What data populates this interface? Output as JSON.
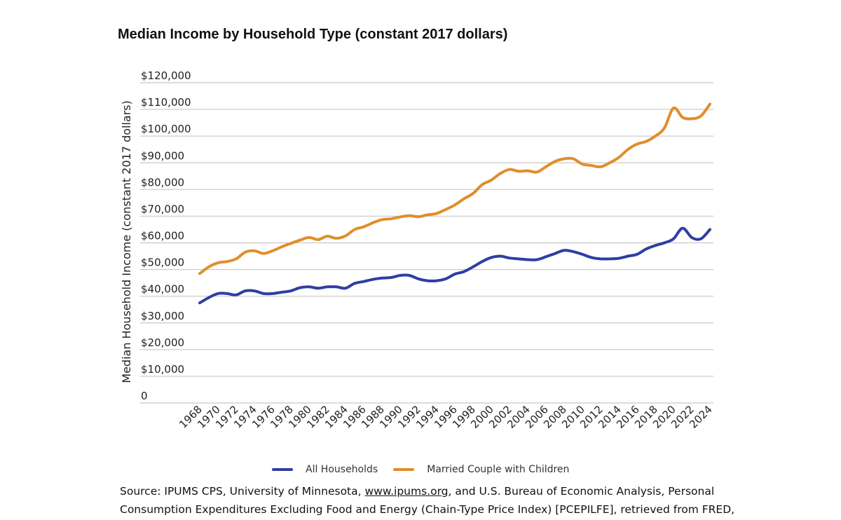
{
  "chart_data": {
    "type": "line",
    "title": "Median Income by Household Type (constant 2017 dollars)",
    "ylabel": "Median Household Income (constant 2017 dollars)",
    "xlabel": "",
    "ylim": [
      0,
      120000
    ],
    "y_ticks": [
      0,
      10000,
      20000,
      30000,
      40000,
      50000,
      60000,
      70000,
      80000,
      90000,
      100000,
      110000,
      120000
    ],
    "y_tick_labels": [
      "0",
      "$10,000",
      "$20,000",
      "$30,000",
      "$40,000",
      "$50,000",
      "$60,000",
      "$70,000",
      "$80,000",
      "$90,000",
      "$100,000",
      "$110,000",
      "$120,000"
    ],
    "x_tick_labels": [
      "1968",
      "1970",
      "1972",
      "1974",
      "1976",
      "1978",
      "1980",
      "1982",
      "1984",
      "1986",
      "1988",
      "1990",
      "1992",
      "1994",
      "1996",
      "1998",
      "2000",
      "2002",
      "2004",
      "2006",
      "2008",
      "2010",
      "2012",
      "2014",
      "2016",
      "2018",
      "2020",
      "2022",
      "2024"
    ],
    "x": [
      1968,
      1969,
      1970,
      1971,
      1972,
      1973,
      1974,
      1975,
      1976,
      1977,
      1978,
      1979,
      1980,
      1981,
      1982,
      1983,
      1984,
      1985,
      1986,
      1987,
      1988,
      1989,
      1990,
      1991,
      1992,
      1993,
      1994,
      1995,
      1996,
      1997,
      1998,
      1999,
      2000,
      2001,
      2002,
      2003,
      2004,
      2005,
      2006,
      2007,
      2008,
      2009,
      2010,
      2011,
      2012,
      2013,
      2014,
      2015,
      2016,
      2017,
      2018,
      2019,
      2020,
      2021,
      2022,
      2023,
      2024
    ],
    "legend_position": "bottom",
    "series": [
      {
        "name": "All Households",
        "color": "#2e3ea3",
        "values": [
          37500,
          39500,
          41000,
          41000,
          40500,
          42000,
          42000,
          41000,
          41000,
          41500,
          42000,
          43200,
          43500,
          43000,
          43500,
          43500,
          43000,
          44800,
          45500,
          46300,
          46800,
          47000,
          47800,
          47800,
          46500,
          45800,
          45800,
          46500,
          48300,
          49200,
          51000,
          53000,
          54500,
          55000,
          54300,
          54000,
          53700,
          53700,
          54800,
          56000,
          57200,
          56700,
          55700,
          54500,
          54000,
          54000,
          54200,
          55000,
          55700,
          57700,
          59000,
          60000,
          61500,
          65500,
          62000,
          61500,
          65000
        ]
      },
      {
        "name": "Married Couple with Children",
        "color": "#e08e2b",
        "values": [
          48500,
          51000,
          52500,
          53000,
          54000,
          56500,
          57000,
          56000,
          57000,
          58500,
          59800,
          61000,
          62000,
          61200,
          62500,
          61700,
          62600,
          65000,
          66000,
          67500,
          68700,
          69000,
          69700,
          70200,
          69800,
          70500,
          71000,
          72500,
          74200,
          76500,
          78500,
          81800,
          83500,
          86000,
          87500,
          86800,
          87000,
          86500,
          88500,
          90500,
          91500,
          91500,
          89500,
          89000,
          88500,
          90000,
          92000,
          95000,
          97000,
          98000,
          100000,
          103000,
          110500,
          107000,
          106500,
          107500,
          112000
        ]
      }
    ]
  },
  "source_note": {
    "text_before": "Source: IPUMS CPS, University of Minnesota, ",
    "link": "www.ipums.org",
    "text_after": ", and U.S. Bureau of Economic Analysis, Personal Consumption Expenditures Excluding Food and Energy (Chain-Type Price Index) [PCEPILFE], retrieved from FRED,"
  }
}
